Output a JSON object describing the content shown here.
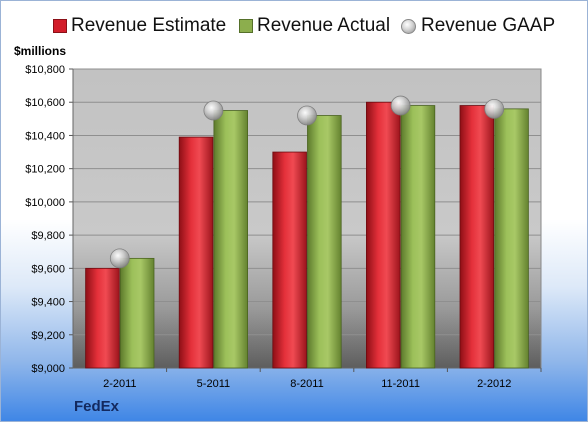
{
  "chart_data": {
    "type": "bar",
    "title": "",
    "ylabel": "$millions",
    "xlabel": "",
    "categories": [
      "2-2011",
      "5-2011",
      "8-2011",
      "11-2011",
      "2-2012"
    ],
    "series": [
      {
        "name": "Revenue Estimate",
        "type": "bar",
        "color": "#d21d2a",
        "values": [
          9600,
          10390,
          10300,
          10600,
          10580
        ]
      },
      {
        "name": "Revenue Actual",
        "type": "bar",
        "color": "#8cae4d",
        "values": [
          9660,
          10550,
          10520,
          10580,
          10560
        ]
      },
      {
        "name": "Revenue GAAP",
        "type": "marker",
        "color": "#bfbfbf",
        "values": [
          9660,
          10550,
          10520,
          10580,
          10560
        ]
      }
    ],
    "ylim": [
      9000,
      10800
    ],
    "yticks": [
      "$9,000",
      "$9,200",
      "$9,400",
      "$9,600",
      "$9,800",
      "$10,000",
      "$10,200",
      "$10,400",
      "$10,600",
      "$10,800"
    ],
    "ytick_values": [
      9000,
      9200,
      9400,
      9600,
      9800,
      10000,
      10200,
      10400,
      10600,
      10800
    ],
    "grid": true,
    "legend": "top",
    "footer": "FedEx"
  }
}
